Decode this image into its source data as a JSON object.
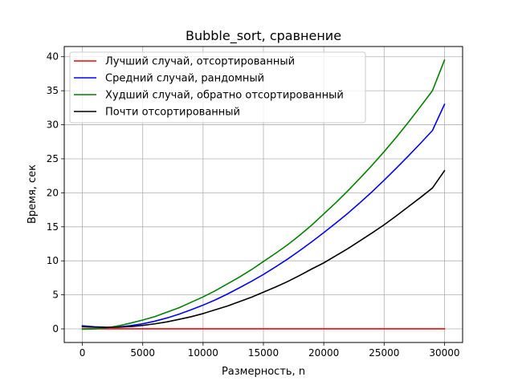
{
  "chart_data": {
    "type": "line",
    "title": "Bubble_sort, сравнение",
    "xlabel": "Размерность, n",
    "ylabel": "Время, сек",
    "xlim": [
      -1500,
      31500
    ],
    "ylim": [
      -2,
      41.5
    ],
    "xticks": [
      0,
      5000,
      10000,
      15000,
      20000,
      25000,
      30000
    ],
    "xtick_labels": [
      "0",
      "5000",
      "10000",
      "15000",
      "20000",
      "25000",
      "30000"
    ],
    "yticks": [
      0,
      5,
      10,
      15,
      20,
      25,
      30,
      35,
      40
    ],
    "ytick_labels": [
      "0",
      "5",
      "10",
      "15",
      "20",
      "25",
      "30",
      "35",
      "40"
    ],
    "grid": true,
    "legend_position": "top-left",
    "x": [
      0,
      1000,
      2000,
      3000,
      4000,
      5000,
      6000,
      7000,
      8000,
      9000,
      10000,
      11000,
      12000,
      13000,
      14000,
      15000,
      16000,
      17000,
      18000,
      19000,
      20000,
      21000,
      22000,
      23000,
      24000,
      25000,
      26000,
      27000,
      28000,
      29000,
      30000
    ],
    "series": [
      {
        "name": "Лучший случай, отсортированный",
        "color": "#ff0000",
        "values": [
          0.01,
          0.01,
          0.01,
          0.01,
          0.01,
          0.01,
          0.01,
          0.01,
          0.01,
          0.01,
          0.01,
          0.01,
          0.01,
          0.01,
          0.01,
          0.01,
          0.01,
          0.01,
          0.01,
          0.01,
          0.01,
          0.01,
          0.01,
          0.01,
          0.01,
          0.01,
          0.01,
          0.01,
          0.01,
          0.01,
          0.01
        ]
      },
      {
        "name": "Средний случай, рандомный",
        "color": "#0000ff",
        "values": [
          0.45,
          0.31,
          0.24,
          0.28,
          0.48,
          0.75,
          1.13,
          1.6,
          2.16,
          2.8,
          3.49,
          4.25,
          5.1,
          6.03,
          6.98,
          8.0,
          9.1,
          10.25,
          11.5,
          12.8,
          14.15,
          15.55,
          17.0,
          18.55,
          20.15,
          21.85,
          23.6,
          25.4,
          27.25,
          29.15,
          33.0
        ]
      },
      {
        "name": "Худший случай, обратно отсортированный",
        "color": "#008000",
        "values": [
          -0.05,
          0.0,
          0.15,
          0.45,
          0.85,
          1.3,
          1.8,
          2.45,
          3.1,
          3.9,
          4.7,
          5.6,
          6.6,
          7.6,
          8.7,
          9.9,
          11.1,
          12.35,
          13.75,
          15.25,
          16.9,
          18.55,
          20.3,
          22.15,
          24.05,
          26.05,
          28.15,
          30.35,
          32.65,
          35.0,
          39.5
        ]
      },
      {
        "name": "Почти отсортированный",
        "color": "#000000",
        "values": [
          0.32,
          0.25,
          0.22,
          0.24,
          0.33,
          0.51,
          0.74,
          1.03,
          1.4,
          1.78,
          2.25,
          2.8,
          3.35,
          4.0,
          4.65,
          5.4,
          6.15,
          6.95,
          7.85,
          8.8,
          9.7,
          10.75,
          11.8,
          12.95,
          14.1,
          15.3,
          16.6,
          17.95,
          19.3,
          20.7,
          23.25
        ]
      }
    ]
  }
}
